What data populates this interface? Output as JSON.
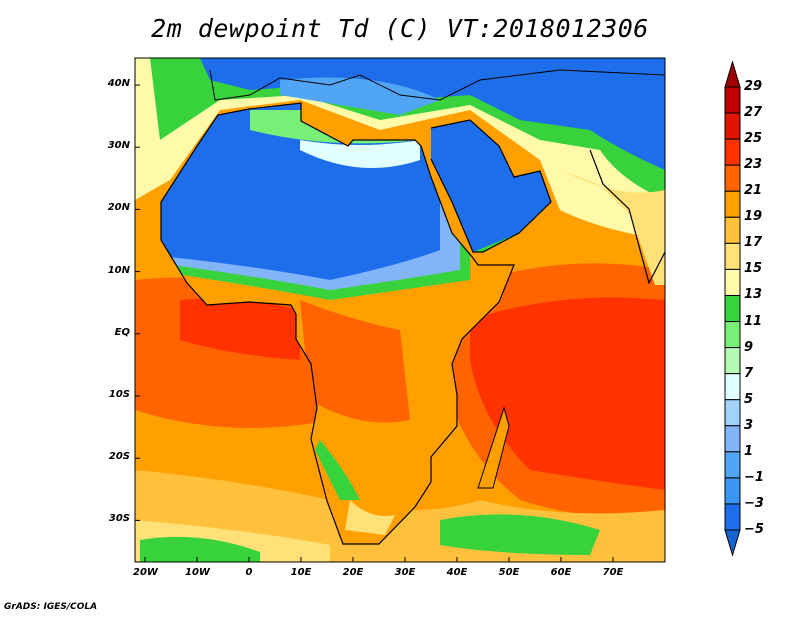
{
  "title": "2m dewpoint Td (C) VT:2018012306",
  "lat_labels": [
    "40N",
    "30N",
    "20N",
    "10N",
    "EQ",
    "10S",
    "20S",
    "30S"
  ],
  "lon_labels": [
    "20W",
    "10W",
    "0",
    "10E",
    "20E",
    "30E",
    "40E",
    "50E",
    "60E",
    "70E"
  ],
  "colorbar": {
    "labels": [
      "29",
      "27",
      "25",
      "23",
      "21",
      "19",
      "17",
      "15",
      "13",
      "11",
      "9",
      "7",
      "5",
      "3",
      "1",
      "−1",
      "−3",
      "−5"
    ],
    "top_arrow_color": "#a00000",
    "bottom_arrow_color": "#1464d2",
    "colors": [
      "#c00000",
      "#e01400",
      "#ff3200",
      "#ff6400",
      "#ffa000",
      "#ffc03c",
      "#ffe178",
      "#fffaaa",
      "#37d23c",
      "#78f078",
      "#b4fab4",
      "#e1ffff",
      "#a0d2fa",
      "#82b4fa",
      "#50a5f5",
      "#3c96f5",
      "#1e6eeb"
    ]
  },
  "credit": "GrADS: IGES/COLA"
}
